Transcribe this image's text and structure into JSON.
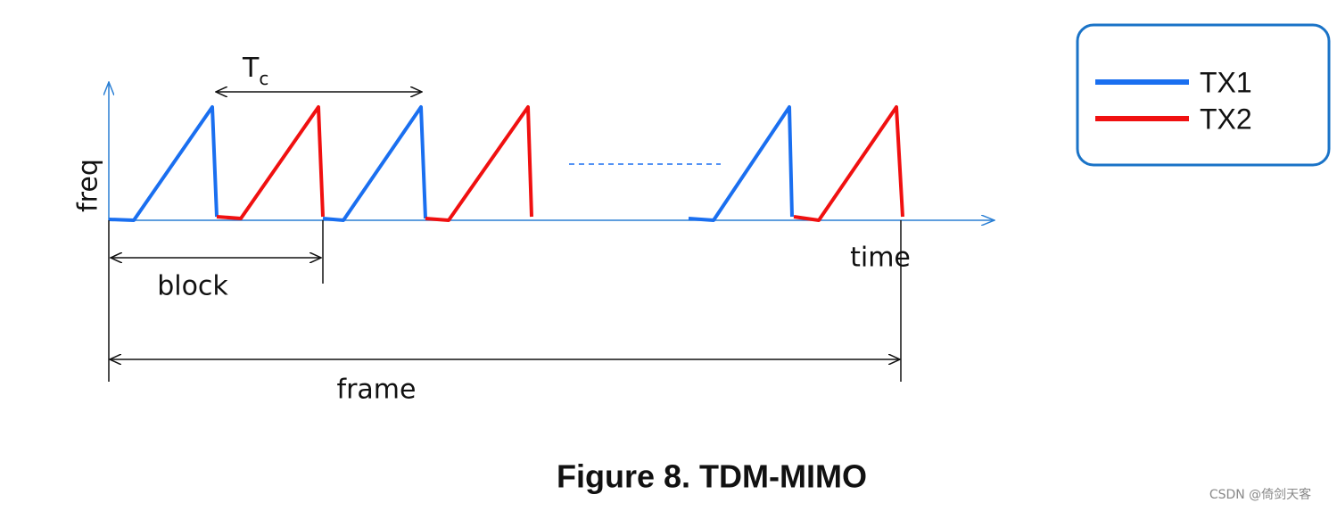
{
  "axes": {
    "y_label": "freq",
    "x_label": "time"
  },
  "annotations": {
    "chirp_period": {
      "base": "T",
      "subscript": "c"
    },
    "block": "block",
    "frame": "frame"
  },
  "legend": {
    "items": [
      {
        "label": "TX1",
        "color": "#1a6ff0"
      },
      {
        "label": "TX2",
        "color": "#f01010"
      }
    ]
  },
  "caption": "Figure 8. TDM-MIMO",
  "watermark": "CSDN @倚剑天客"
}
